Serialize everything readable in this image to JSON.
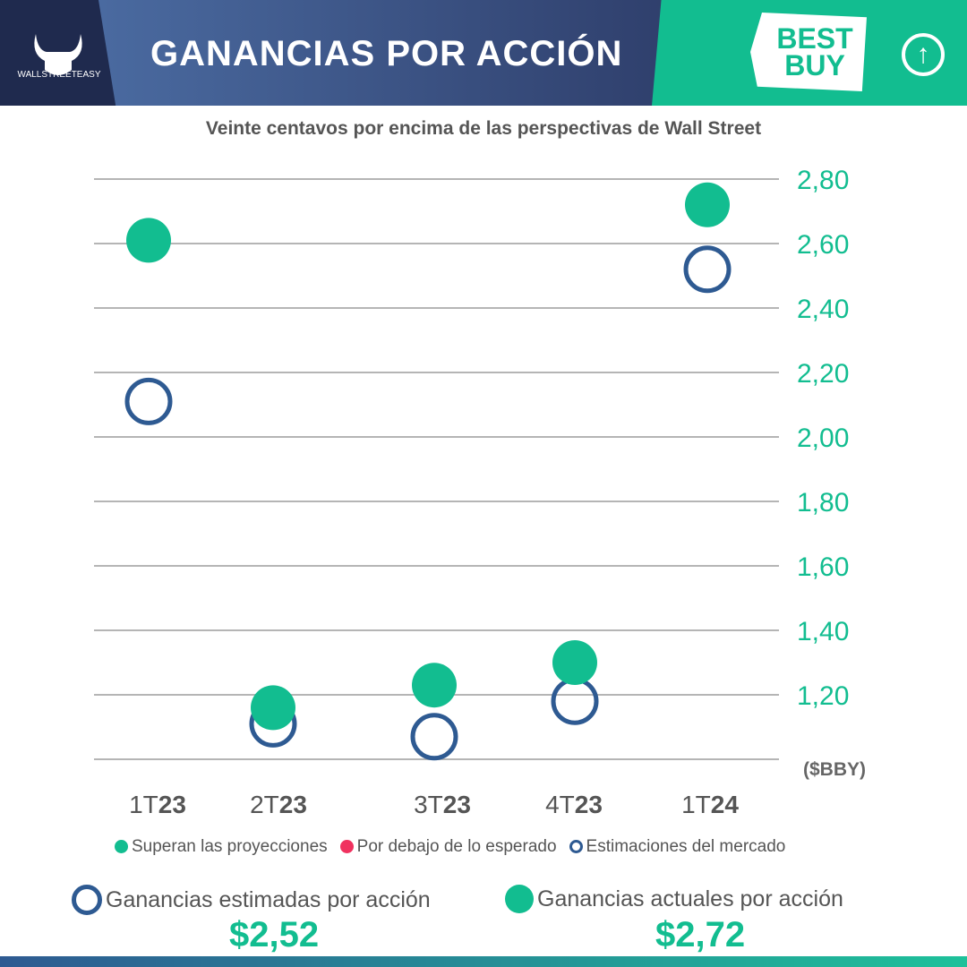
{
  "header": {
    "title": "GANANCIAS POR ACCIÓN",
    "brand": "WALLSTREETEASY",
    "company_logo": "BEST BUY",
    "trend_icon": "arrow-up-circle-icon"
  },
  "colors": {
    "actual": "#12bd90",
    "estimate": "#2e5a92",
    "miss": "#f0325f",
    "grid": "#b5b5b5"
  },
  "chart_data": {
    "type": "scatter",
    "title": "Veinte centavos por encima de las perspectivas de Wall Street",
    "ylabel": "($BBY)",
    "ylim": [
      1.0,
      2.8
    ],
    "yticks": [
      "2,80",
      "2,60",
      "2,40",
      "2,20",
      "2,00",
      "1,80",
      "1,60",
      "1,40",
      "1,20"
    ],
    "ytick_values": [
      2.8,
      2.6,
      2.4,
      2.2,
      2.0,
      1.8,
      1.6,
      1.4,
      1.2
    ],
    "categories": [
      {
        "pre": "1T",
        "post": "23"
      },
      {
        "pre": "2T",
        "post": "23"
      },
      {
        "pre": "3T",
        "post": "23"
      },
      {
        "pre": "4T",
        "post": "23"
      },
      {
        "pre": "1T",
        "post": "24"
      }
    ],
    "series": [
      {
        "name": "Ganancias actuales por acción",
        "values": [
          2.61,
          1.16,
          1.23,
          1.3,
          2.72
        ]
      },
      {
        "name": "Estimaciones del mercado",
        "values": [
          2.11,
          1.11,
          1.07,
          1.18,
          2.52
        ]
      }
    ],
    "legend": [
      "Superan las proyecciones",
      "Por debajo de lo esperado",
      "Estimaciones del mercado"
    ]
  },
  "summary": {
    "estimated_label": "Ganancias estimadas por acción",
    "estimated_value": "$2,52",
    "actual_label": "Ganancias actuales por acción",
    "actual_value": "$2,72"
  }
}
